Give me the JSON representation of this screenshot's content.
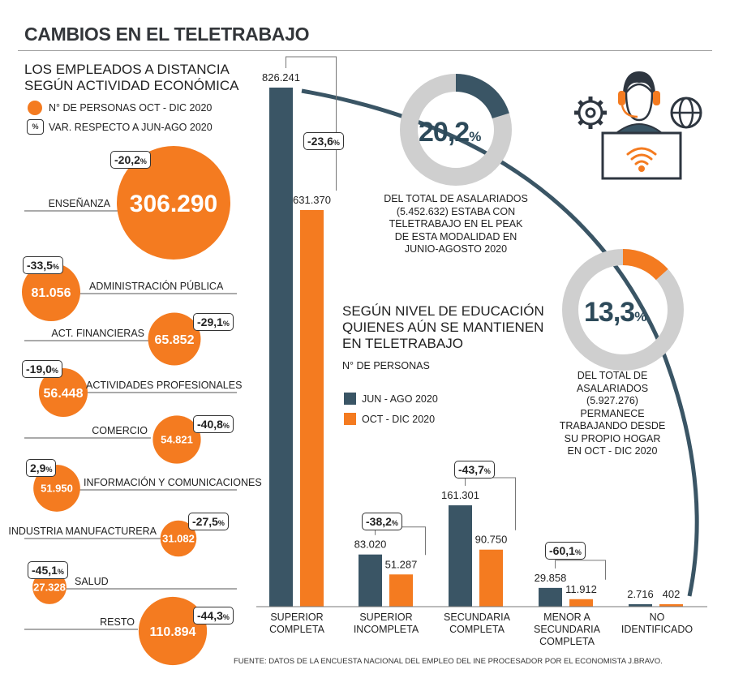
{
  "title": "CAMBIOS EN EL TELETRABAJO",
  "colors": {
    "orange": "#f47b20",
    "dark": "#3a5565",
    "grey": "#cfcfcf"
  },
  "left_section": {
    "title_line1": "LOS EMPLEADOS A DISTANCIA",
    "title_line2": "SEGÚN ACTIVIDAD ECONÓMICA",
    "legend_bubble": "N° DE PERSONAS OCT - DIC 2020",
    "legend_pct_symbol": "%",
    "legend_pct": "VAR. RESPECTO A JUN-AGO 2020"
  },
  "bar_section": {
    "title_line1": "SEGÚN NIVEL DE EDUCACIÓN",
    "title_line2": "QUIENES AÚN SE MANTIENEN",
    "title_line3": "EN TELETRABAJO",
    "unit": "N° DE PERSONAS",
    "legend_series1": "JUN - AGO 2020",
    "legend_series2": "OCT - DIC 2020"
  },
  "donut1": {
    "pct": "20,2",
    "pct_sign": "%",
    "value": 20.2,
    "text": [
      "DEL TOTAL DE ASALARIADOS",
      "(5.452.632) ESTABA CON",
      "TELETRABAJO  EN EL PEAK",
      "DE ESTA MODALIDAD EN",
      "JUNIO-AGOSTO 2020"
    ]
  },
  "donut2": {
    "pct": "13,3",
    "pct_sign": "%",
    "value": 13.3,
    "text": [
      "DEL TOTAL DE",
      "ASALARIADOS",
      "(5.927.276)",
      "PERMANECE",
      "TRABAJANDO DESDE",
      "SU PROPIO HOGAR",
      "EN OCT - DIC 2020"
    ]
  },
  "source": "FUENTE: DATOS DE LA ENCUESTA NACIONAL DEL EMPLEO DEL INE PROCESADOR POR EL ECONOMISTA J.BRAVO.",
  "chart_data": [
    {
      "type": "bubble",
      "title": "LOS EMPLEADOS A DISTANCIA SEGÚN ACTIVIDAD ECONÓMICA",
      "series": [
        {
          "name": "N° DE PERSONAS OCT - DIC 2020"
        }
      ],
      "items": [
        {
          "label": "ENSEÑANZA",
          "value": 306290,
          "value_text": "306.290",
          "pct": "-20,2"
        },
        {
          "label": "ADMINISTRACIÓN PÚBLICA",
          "value": 81056,
          "value_text": "81.056",
          "pct": "-33,5"
        },
        {
          "label": "ACT. FINANCIERAS",
          "value": 65852,
          "value_text": "65.852",
          "pct": "-29,1"
        },
        {
          "label": "ACTIVIDADES PROFESIONALES",
          "value": 56448,
          "value_text": "56.448",
          "pct": "-19,0"
        },
        {
          "label": "COMERCIO",
          "value": 54821,
          "value_text": "54.821",
          "pct": "-40,8"
        },
        {
          "label": "INFORMACIÓN Y COMUNICACIONES",
          "value": 51950,
          "value_text": "51.950",
          "pct": "2,9"
        },
        {
          "label": "INDUSTRIA  MANUFACTURERA",
          "value": 31082,
          "value_text": "31.082",
          "pct": "-27,5"
        },
        {
          "label": "SALUD",
          "value": 27328,
          "value_text": "27.328",
          "pct": "-45,1"
        },
        {
          "label": "RESTO",
          "value": 110894,
          "value_text": "110.894",
          "pct": "-44,3"
        }
      ]
    },
    {
      "type": "bar",
      "title": "SEGÚN NIVEL DE EDUCACIÓN QUIENES AÚN SE MANTIENEN EN TELETRABAJO",
      "ylabel": "N° DE PERSONAS",
      "categories": [
        [
          "SUPERIOR",
          "COMPLETA"
        ],
        [
          "SUPERIOR",
          "INCOMPLETA"
        ],
        [
          "SECUNDARIA",
          "COMPLETA"
        ],
        [
          "MENOR A",
          "SECUNDARIA",
          "COMPLETA"
        ],
        [
          "NO",
          "IDENTIFICADO"
        ]
      ],
      "series": [
        {
          "name": "JUN - AGO 2020",
          "values": [
            826241,
            83020,
            161301,
            29858,
            2716
          ],
          "labels": [
            "826.241",
            "83.020",
            "161.301",
            "29.858",
            "2.716"
          ]
        },
        {
          "name": "OCT - DIC 2020",
          "values": [
            631370,
            51287,
            90750,
            11912,
            402
          ],
          "labels": [
            "631.370",
            "51.287",
            "90.750",
            "11.912",
            "402"
          ]
        }
      ],
      "changes": [
        "-23,6",
        "-38,2",
        "-43,7",
        "-60,1",
        ""
      ],
      "pct_sign": "%"
    }
  ]
}
